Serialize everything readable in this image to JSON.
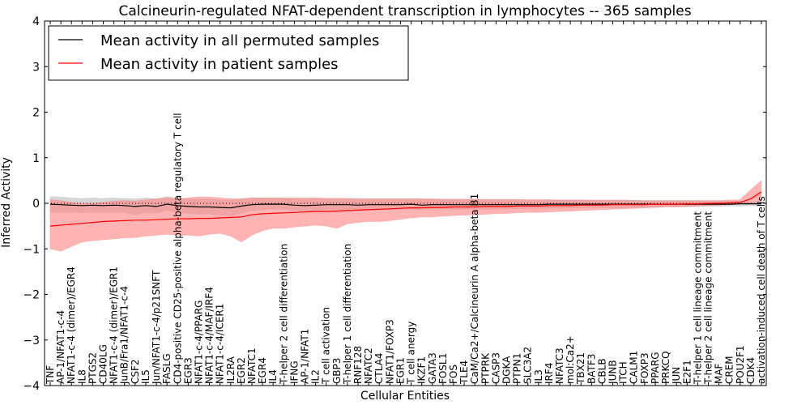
{
  "chart_data": {
    "type": "line",
    "title": "Calcineurin-regulated NFAT-dependent transcription in lymphocytes -- 365 samples",
    "xlabel": "Cellular Entities",
    "ylabel": "Inferred Activity",
    "ylim": [
      -4,
      4
    ],
    "yticks": [
      -4,
      -3,
      -2,
      -1,
      0,
      1,
      2,
      3,
      4
    ],
    "legend": {
      "placement": "top-left",
      "entries": [
        "Mean activity in all permuted samples",
        "Mean activity in patient samples"
      ]
    },
    "colors": {
      "permuted": "#000000",
      "patient": "#ff0000",
      "permuted_band": "#c8c8c8",
      "patient_band": "#ff8080"
    },
    "categories": [
      "TNF",
      "AP-1/NFAT1-c-4",
      "NFAT1-c-4 (dimer)/EGR4",
      "IL8",
      "PTGS2",
      "CD40LG",
      "NFAT1-c-4 (dimer)/EGR1",
      "JunB/Fra1/NFAT1-c-4",
      "CSF2",
      "IL5",
      "Jun/NFAT1-c-4/p21SNFT",
      "FASLG",
      "CD4-positive CD25-positive alpha-beta regulatory T cell",
      "EGR3",
      "NFAT1-c-4/PPARG",
      "NFAT1-c-4/MAF/IRF4",
      "NFAT1-c-4/ICER1",
      "IL2RA",
      "EGR2",
      "NFATC1",
      "EGR4",
      "IL4",
      "T-helper 2 cell differentiation",
      "IFNG",
      "AP-1/NFAT1",
      "IL2",
      "T cell activation",
      "GBP3",
      "T-helper 1 cell differentiation",
      "RNF128",
      "NFATC2",
      "CTLA4",
      "NFAT1/FOXP3",
      "EGR1",
      "T cell anergy",
      "IKZF1",
      "GATA3",
      "FOSL1",
      "FOS",
      "TLE4",
      "CaM/Ca2+/Calcineurin A alpha-beta B1",
      "PTPRK",
      "CASP3",
      "DGKA",
      "PTPN1",
      "SLC3A2",
      "IL3",
      "IRF4",
      "NFATC3",
      "mol:Ca2+",
      "TBX21",
      "BATF3",
      "CBLB",
      "JUNB",
      "ITCH",
      "CALM1",
      "FOXP3",
      "PPARG",
      "PRKCQ",
      "JUN",
      "E2F1",
      "T-helper 1 cell lineage commitment",
      "T-helper 2 cell lineage commitment",
      "MAF",
      "CREM",
      "POU2F1",
      "CDK4",
      "activation-induced cell death of T cells"
    ],
    "series": [
      {
        "name": "Mean activity in all permuted samples",
        "values": [
          -0.02,
          -0.03,
          -0.04,
          -0.05,
          -0.04,
          -0.05,
          -0.04,
          -0.05,
          -0.07,
          -0.05,
          -0.07,
          -0.02,
          -0.05,
          -0.07,
          -0.08,
          -0.08,
          -0.09,
          -0.1,
          -0.06,
          -0.03,
          -0.02,
          -0.02,
          -0.02,
          -0.04,
          -0.05,
          -0.04,
          -0.03,
          -0.03,
          -0.03,
          -0.04,
          -0.03,
          -0.03,
          -0.03,
          -0.03,
          -0.02,
          -0.04,
          -0.03,
          -0.03,
          -0.03,
          -0.03,
          -0.03,
          -0.03,
          -0.03,
          -0.03,
          -0.03,
          -0.03,
          -0.03,
          -0.02,
          -0.02,
          -0.02,
          -0.02,
          -0.02,
          -0.02,
          -0.02,
          -0.02,
          -0.02,
          -0.02,
          -0.02,
          -0.02,
          -0.02,
          -0.02,
          -0.02,
          -0.02,
          -0.02,
          -0.02,
          -0.01,
          -0.01,
          -0.01
        ],
        "lower": [
          -0.2,
          -0.2,
          -0.2,
          -0.21,
          -0.2,
          -0.2,
          -0.2,
          -0.2,
          -0.25,
          -0.2,
          -0.22,
          -0.16,
          -0.2,
          -0.22,
          -0.24,
          -0.24,
          -0.26,
          -0.28,
          -0.22,
          -0.16,
          -0.14,
          -0.13,
          -0.13,
          -0.16,
          -0.17,
          -0.16,
          -0.15,
          -0.15,
          -0.15,
          -0.15,
          -0.14,
          -0.14,
          -0.14,
          -0.14,
          -0.13,
          -0.14,
          -0.13,
          -0.13,
          -0.13,
          -0.13,
          -0.13,
          -0.13,
          -0.13,
          -0.12,
          -0.12,
          -0.12,
          -0.12,
          -0.11,
          -0.11,
          -0.1,
          -0.1,
          -0.1,
          -0.1,
          -0.1,
          -0.1,
          -0.09,
          -0.09,
          -0.09,
          -0.08,
          -0.08,
          -0.08,
          -0.07,
          -0.07,
          -0.07,
          -0.06,
          -0.06,
          -0.05,
          -0.05
        ],
        "upper": [
          0.15,
          0.14,
          0.12,
          0.11,
          0.12,
          0.11,
          0.12,
          0.11,
          0.1,
          0.12,
          0.1,
          0.15,
          0.12,
          0.1,
          0.09,
          0.09,
          0.08,
          0.07,
          0.1,
          0.12,
          0.12,
          0.11,
          0.11,
          0.1,
          0.09,
          0.1,
          0.1,
          0.1,
          0.1,
          0.1,
          0.1,
          0.1,
          0.1,
          0.1,
          0.1,
          0.09,
          0.09,
          0.09,
          0.09,
          0.09,
          0.09,
          0.09,
          0.09,
          0.09,
          0.09,
          0.08,
          0.08,
          0.08,
          0.08,
          0.08,
          0.08,
          0.07,
          0.07,
          0.07,
          0.07,
          0.07,
          0.06,
          0.06,
          0.06,
          0.06,
          0.06,
          0.06,
          0.05,
          0.05,
          0.05,
          0.05,
          0.04,
          0.04
        ]
      },
      {
        "name": "Mean activity in patient samples",
        "values": [
          -0.5,
          -0.48,
          -0.46,
          -0.44,
          -0.42,
          -0.4,
          -0.39,
          -0.38,
          -0.37,
          -0.37,
          -0.36,
          -0.35,
          -0.34,
          -0.34,
          -0.33,
          -0.33,
          -0.32,
          -0.31,
          -0.3,
          -0.25,
          -0.23,
          -0.22,
          -0.21,
          -0.2,
          -0.19,
          -0.18,
          -0.18,
          -0.17,
          -0.16,
          -0.15,
          -0.14,
          -0.13,
          -0.12,
          -0.11,
          -0.1,
          -0.1,
          -0.09,
          -0.09,
          -0.08,
          -0.08,
          -0.08,
          -0.07,
          -0.07,
          -0.07,
          -0.06,
          -0.06,
          -0.06,
          -0.05,
          -0.05,
          -0.05,
          -0.04,
          -0.04,
          -0.04,
          -0.03,
          -0.03,
          -0.03,
          -0.03,
          -0.02,
          -0.02,
          -0.02,
          -0.01,
          -0.01,
          0.0,
          0.0,
          0.01,
          0.02,
          0.1,
          0.25
        ],
        "lower": [
          -1.0,
          -1.05,
          -0.95,
          -0.85,
          -0.82,
          -0.8,
          -0.78,
          -0.76,
          -0.75,
          -0.72,
          -0.7,
          -0.68,
          -0.7,
          -0.7,
          -0.72,
          -0.68,
          -0.66,
          -0.72,
          -0.85,
          -0.7,
          -0.6,
          -0.55,
          -0.55,
          -0.52,
          -0.5,
          -0.48,
          -0.5,
          -0.55,
          -0.45,
          -0.42,
          -0.4,
          -0.4,
          -0.38,
          -0.35,
          -0.32,
          -0.3,
          -0.3,
          -0.28,
          -0.27,
          -0.26,
          -0.25,
          -0.24,
          -0.23,
          -0.22,
          -0.21,
          -0.2,
          -0.2,
          -0.19,
          -0.18,
          -0.17,
          -0.16,
          -0.15,
          -0.14,
          -0.13,
          -0.12,
          -0.11,
          -0.1,
          -0.09,
          -0.08,
          -0.08,
          -0.07,
          -0.06,
          -0.05,
          -0.04,
          -0.03,
          -0.02,
          0.0,
          0.05
        ],
        "upper": [
          0.08,
          0.06,
          0.02,
          0.0,
          0.0,
          0.02,
          0.05,
          0.06,
          0.05,
          0.08,
          0.1,
          0.12,
          0.1,
          0.12,
          0.14,
          0.14,
          0.12,
          0.1,
          0.1,
          0.12,
          0.12,
          0.12,
          0.12,
          0.12,
          0.12,
          0.12,
          0.11,
          0.11,
          0.11,
          0.1,
          0.1,
          0.1,
          0.1,
          0.1,
          0.1,
          0.1,
          0.1,
          0.09,
          0.09,
          0.09,
          0.09,
          0.08,
          0.08,
          0.08,
          0.08,
          0.08,
          0.08,
          0.08,
          0.07,
          0.07,
          0.07,
          0.07,
          0.07,
          0.07,
          0.07,
          0.06,
          0.06,
          0.06,
          0.06,
          0.06,
          0.06,
          0.06,
          0.06,
          0.06,
          0.07,
          0.08,
          0.3,
          0.5
        ]
      }
    ]
  }
}
